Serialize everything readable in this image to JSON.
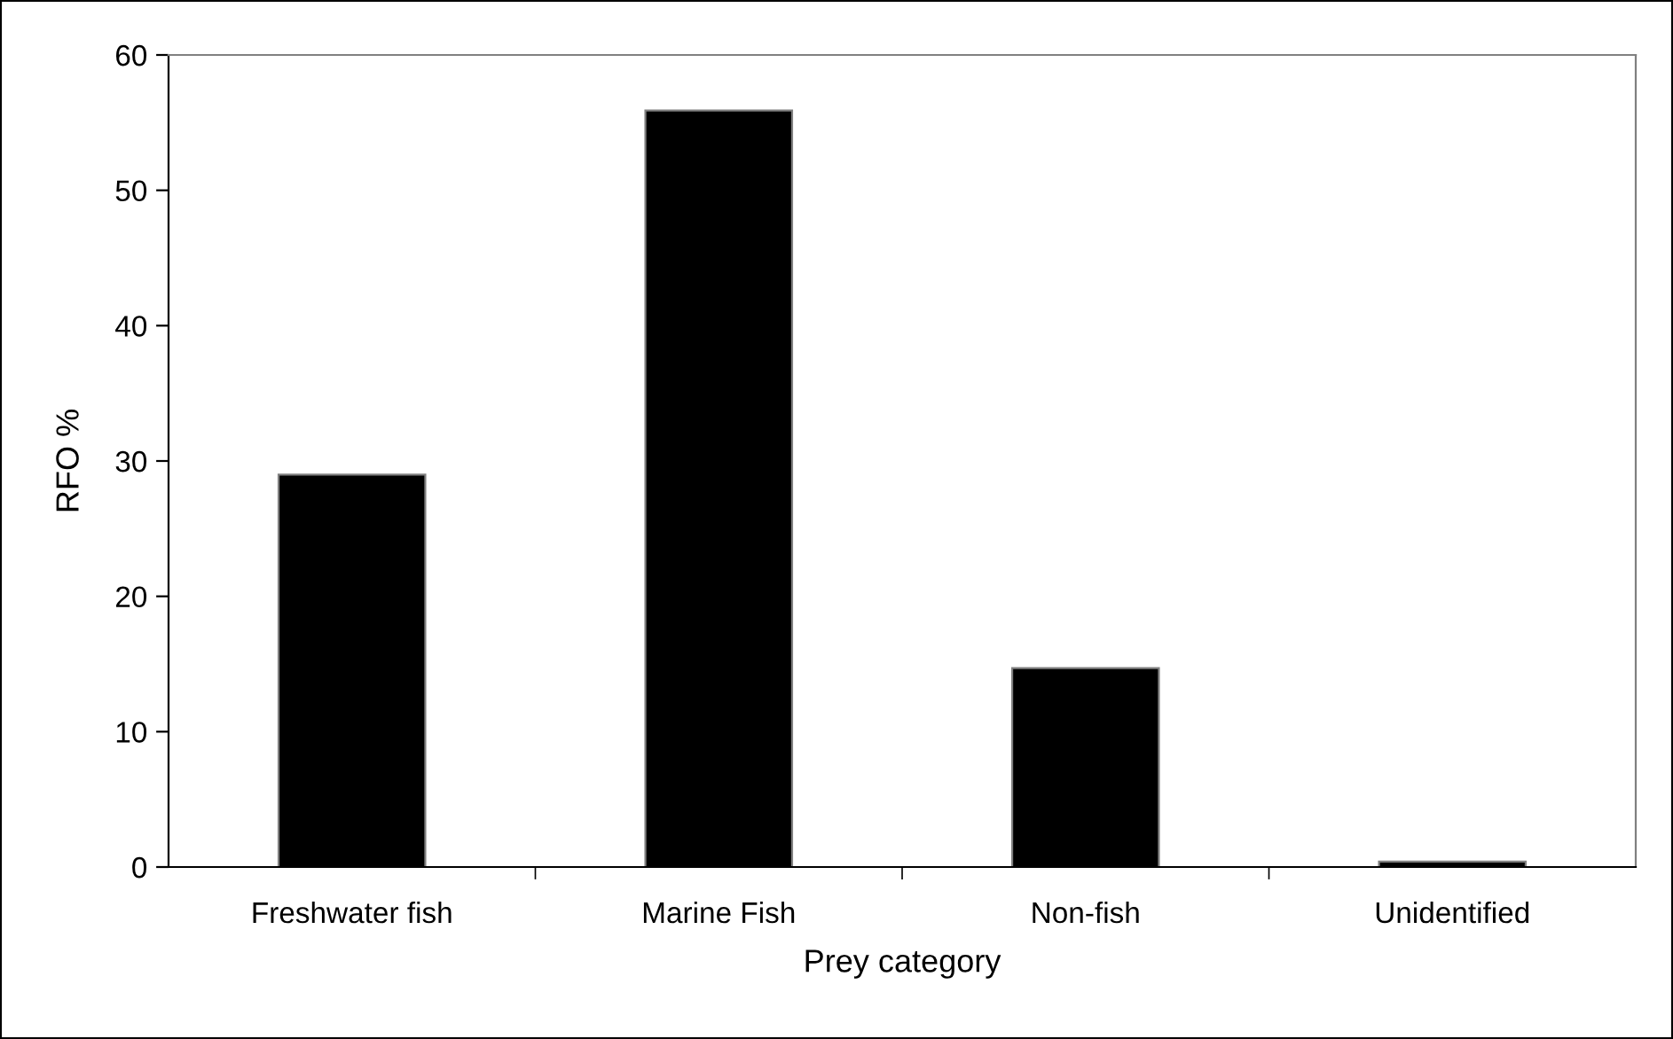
{
  "chart_data": {
    "type": "bar",
    "xlabel": "Prey category",
    "ylabel": "RFO %",
    "categories": [
      "Freshwater fish",
      "Marine Fish",
      "Non-fish",
      "Unidentified"
    ],
    "values": [
      29.0,
      55.9,
      14.7,
      0.4
    ],
    "color": "#000000",
    "ylim": [
      0,
      60
    ],
    "yticks": [
      0,
      10,
      20,
      30,
      40,
      50,
      60
    ],
    "grid": false,
    "legend": false
  }
}
